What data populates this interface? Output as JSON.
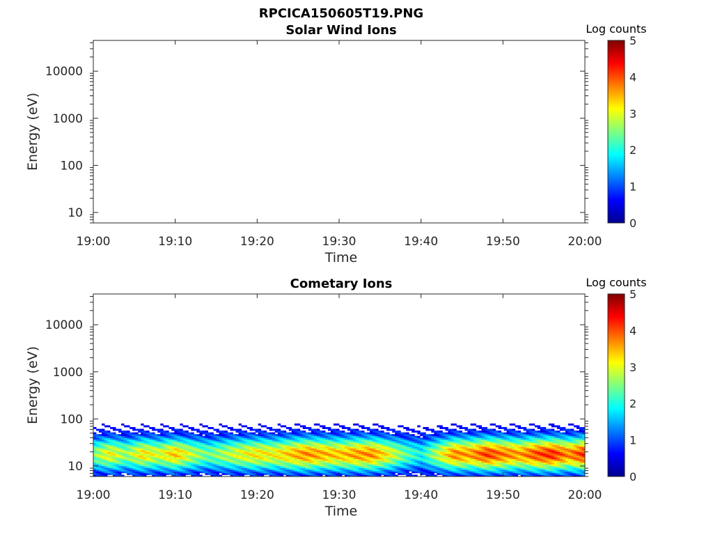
{
  "figure": {
    "title": "RPCICA150605T19.PNG"
  },
  "chart_data": [
    {
      "type": "heatmap",
      "title": "Solar Wind Ions",
      "xlabel": "Time",
      "ylabel": "Energy (eV)",
      "x_ticks": [
        "19:00",
        "19:10",
        "19:20",
        "19:30",
        "19:40",
        "19:50",
        "20:00"
      ],
      "x_range": [
        "19:00",
        "20:00"
      ],
      "y_scale": "log",
      "y_ticks": [
        "10",
        "100",
        "1000",
        "10000"
      ],
      "y_range": [
        6,
        45000
      ],
      "colorbar": {
        "label": "Log counts",
        "ticks": [
          "0",
          "1",
          "2",
          "3",
          "4",
          "5"
        ],
        "range": [
          0,
          5
        ]
      },
      "grid": false,
      "data": []
    },
    {
      "type": "heatmap",
      "title": "Cometary Ions",
      "xlabel": "Time",
      "ylabel": "Energy (eV)",
      "x_ticks": [
        "19:00",
        "19:10",
        "19:20",
        "19:30",
        "19:40",
        "19:50",
        "20:00"
      ],
      "x_range": [
        "19:00",
        "20:00"
      ],
      "y_scale": "log",
      "y_ticks": [
        "10",
        "100",
        "1000",
        "10000"
      ],
      "y_range": [
        6,
        45000
      ],
      "colorbar": {
        "label": "Log counts",
        "ticks": [
          "0",
          "1",
          "2",
          "3",
          "4",
          "5"
        ],
        "range": [
          0,
          5
        ]
      },
      "grid": false,
      "energy_max_eV": 80,
      "peak_energy_eV": 18,
      "peak_log_counts_by_time": [
        {
          "time": "19:00",
          "value": 2.5
        },
        {
          "time": "19:02",
          "value": 3.1
        },
        {
          "time": "19:04",
          "value": 2.6
        },
        {
          "time": "19:06",
          "value": 3.2
        },
        {
          "time": "19:08",
          "value": 2.9
        },
        {
          "time": "19:10",
          "value": 3.4
        },
        {
          "time": "19:12",
          "value": 2.8
        },
        {
          "time": "19:14",
          "value": 2.4
        },
        {
          "time": "19:16",
          "value": 2.7
        },
        {
          "time": "19:18",
          "value": 3.0
        },
        {
          "time": "19:20",
          "value": 3.2
        },
        {
          "time": "19:22",
          "value": 3.1
        },
        {
          "time": "19:24",
          "value": 3.4
        },
        {
          "time": "19:26",
          "value": 3.7
        },
        {
          "time": "19:28",
          "value": 3.5
        },
        {
          "time": "19:30",
          "value": 3.4
        },
        {
          "time": "19:32",
          "value": 3.6
        },
        {
          "time": "19:34",
          "value": 3.7
        },
        {
          "time": "19:36",
          "value": 3.1
        },
        {
          "time": "19:38",
          "value": 2.4
        },
        {
          "time": "19:40",
          "value": 1.9
        },
        {
          "time": "19:42",
          "value": 2.8
        },
        {
          "time": "19:44",
          "value": 3.7
        },
        {
          "time": "19:46",
          "value": 3.6
        },
        {
          "time": "19:48",
          "value": 4.1
        },
        {
          "time": "19:50",
          "value": 3.8
        },
        {
          "time": "19:52",
          "value": 3.6
        },
        {
          "time": "19:54",
          "value": 4.0
        },
        {
          "time": "19:56",
          "value": 4.2
        },
        {
          "time": "19:58",
          "value": 3.7
        },
        {
          "time": "20:00",
          "value": 4.2
        }
      ]
    }
  ]
}
